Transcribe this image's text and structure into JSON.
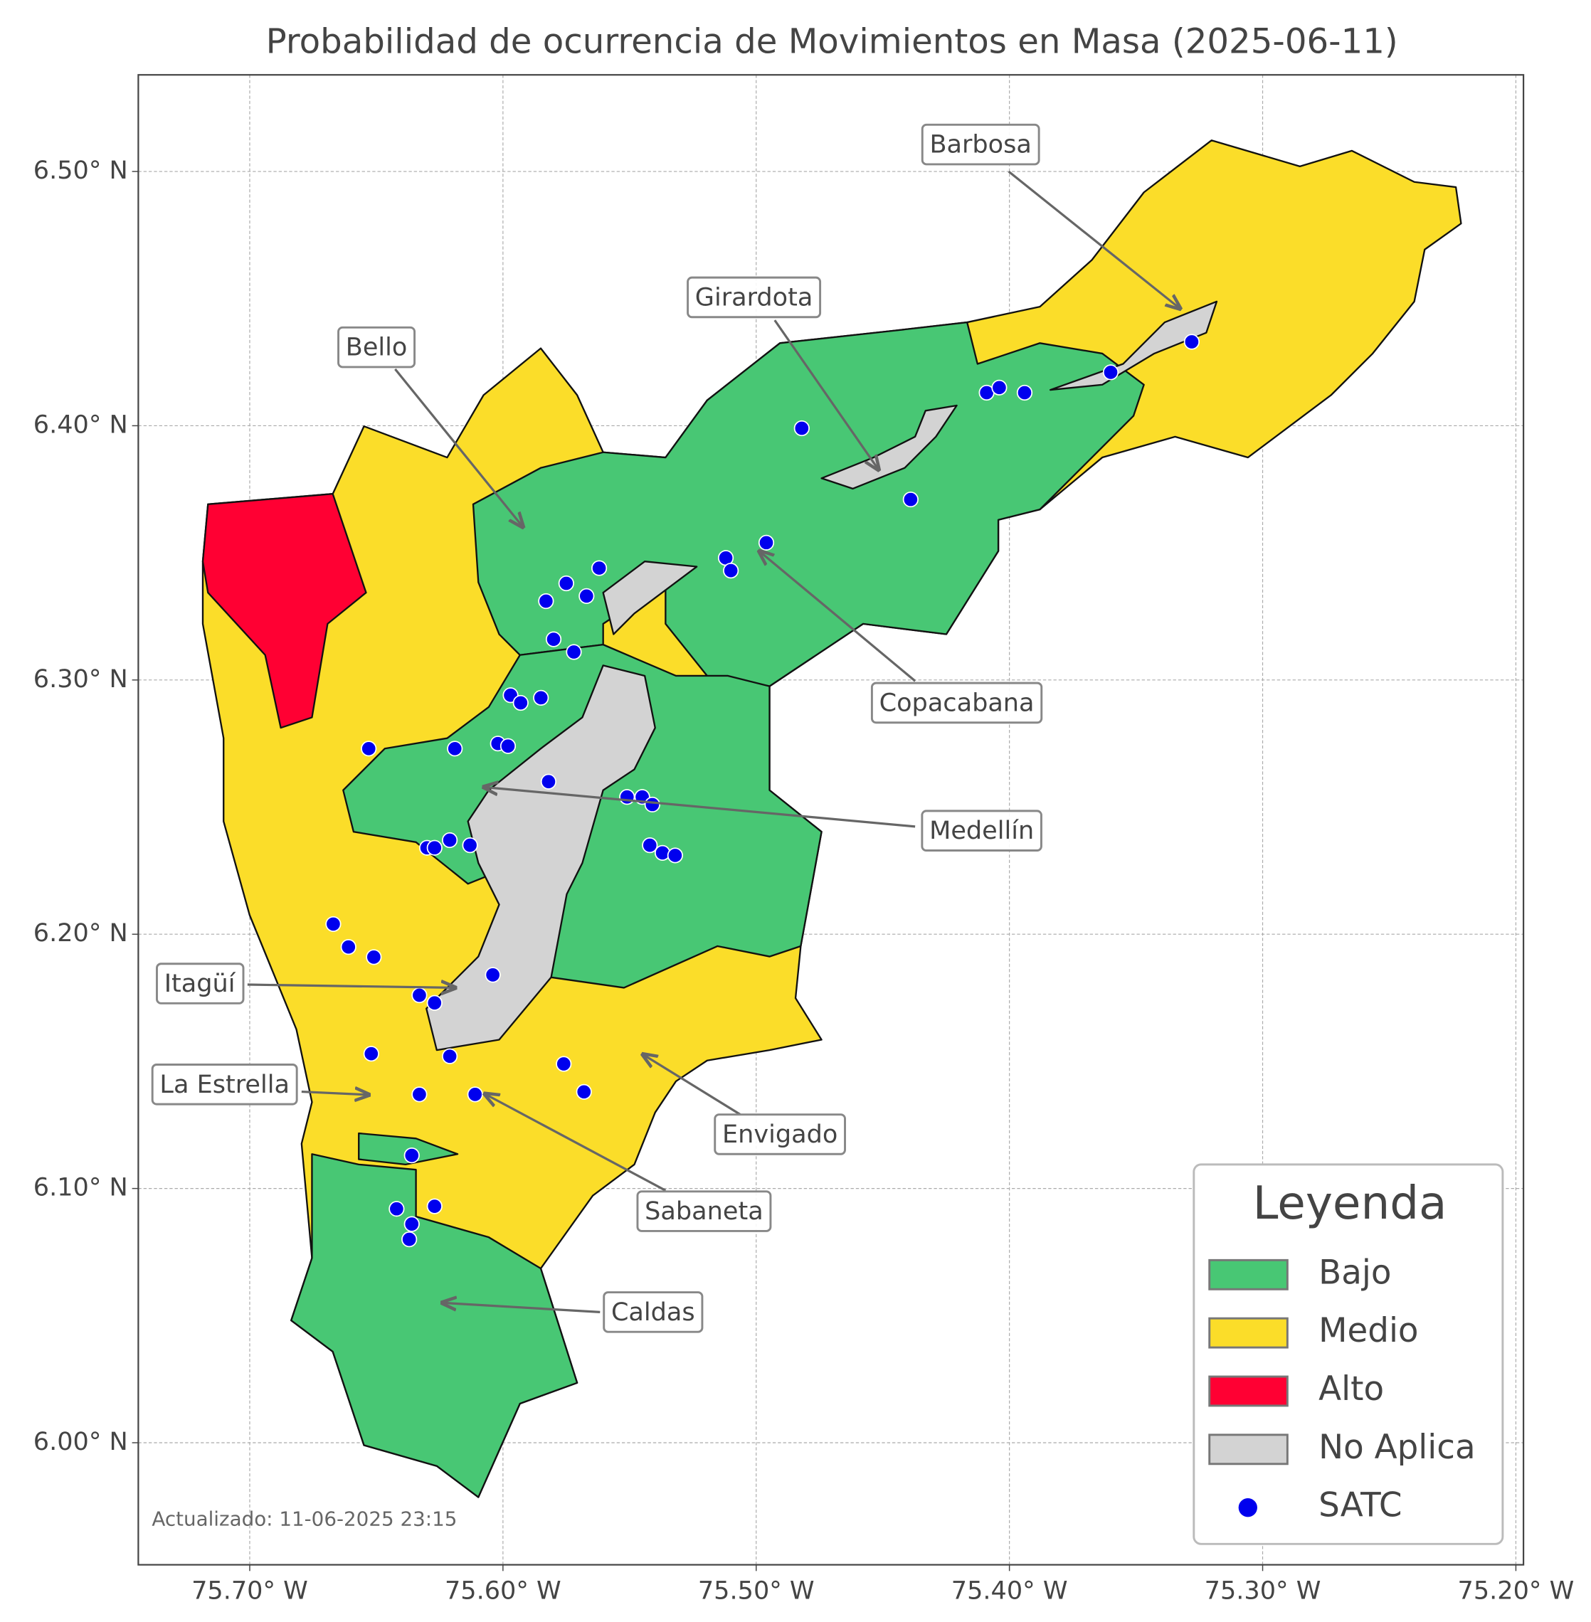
{
  "chart_data": {
    "type": "map",
    "title": "Probabilidad de ocurrencia de Movimientos en Masa (2025-06-11)",
    "xlim": [
      -75.744,
      -75.197
    ],
    "ylim": [
      5.952,
      6.538
    ],
    "xticks": [
      {
        "value": -75.7,
        "label": "75.70° W"
      },
      {
        "value": -75.6,
        "label": "75.60° W"
      },
      {
        "value": -75.5,
        "label": "75.50° W"
      },
      {
        "value": -75.4,
        "label": "75.40° W"
      },
      {
        "value": -75.3,
        "label": "75.30° W"
      },
      {
        "value": -75.2,
        "label": "75.20° W"
      }
    ],
    "yticks": [
      {
        "value": 6.0,
        "label": "6.00° N"
      },
      {
        "value": 6.1,
        "label": "6.10° N"
      },
      {
        "value": 6.2,
        "label": "6.20° N"
      },
      {
        "value": 6.3,
        "label": "6.30° N"
      },
      {
        "value": 6.4,
        "label": "6.40° N"
      },
      {
        "value": 6.5,
        "label": "6.50° N"
      }
    ],
    "grid": true,
    "legend": {
      "title": "Leyenda",
      "position": "lower right",
      "entries": [
        {
          "name": "Bajo",
          "color": "#48c774"
        },
        {
          "name": "Medio",
          "color": "#fbdd29"
        },
        {
          "name": "Alto",
          "color": "#ff0033"
        },
        {
          "name": "No Aplica",
          "color": "#d3d3d3"
        }
      ]
    },
    "series": [
      {
        "name": "SATC",
        "color": "#0000ee",
        "x": [
          -75.482,
          -75.409,
          -75.404,
          -75.394,
          -75.36,
          -75.328,
          -75.439,
          -75.496,
          -75.512,
          -75.51,
          -75.562,
          -75.575,
          -75.567,
          -75.583,
          -75.58,
          -75.572,
          -75.597,
          -75.593,
          -75.585,
          -75.653,
          -75.619,
          -75.602,
          -75.598,
          -75.582,
          -75.551,
          -75.545,
          -75.541,
          -75.542,
          -75.537,
          -75.532,
          -75.63,
          -75.627,
          -75.621,
          -75.613,
          -75.667,
          -75.661,
          -75.651,
          -75.604,
          -75.633,
          -75.627,
          -75.652,
          -75.621,
          -75.576,
          -75.568,
          -75.633,
          -75.611,
          -75.636,
          -75.642,
          -75.627,
          -75.636,
          -75.637
        ],
        "y": [
          6.399,
          6.413,
          6.415,
          6.413,
          6.421,
          6.433,
          6.371,
          6.354,
          6.348,
          6.343,
          6.344,
          6.338,
          6.333,
          6.331,
          6.316,
          6.311,
          6.294,
          6.291,
          6.293,
          6.273,
          6.273,
          6.275,
          6.274,
          6.26,
          6.254,
          6.254,
          6.251,
          6.235,
          6.232,
          6.231,
          6.234,
          6.234,
          6.237,
          6.235,
          6.204,
          6.195,
          6.191,
          6.184,
          6.176,
          6.173,
          6.153,
          6.152,
          6.149,
          6.138,
          6.137,
          6.137,
          6.113,
          6.092,
          6.093,
          6.086,
          6.08
        ]
      }
    ],
    "annotations": [
      "Barbosa",
      "Girardota",
      "Bello",
      "Copacabana",
      "Medellín",
      "Itagüí",
      "La Estrella",
      "Envigado",
      "Sabaneta",
      "Caldas"
    ],
    "footnote": "Actualizado: 11-06-2025 23:15"
  }
}
